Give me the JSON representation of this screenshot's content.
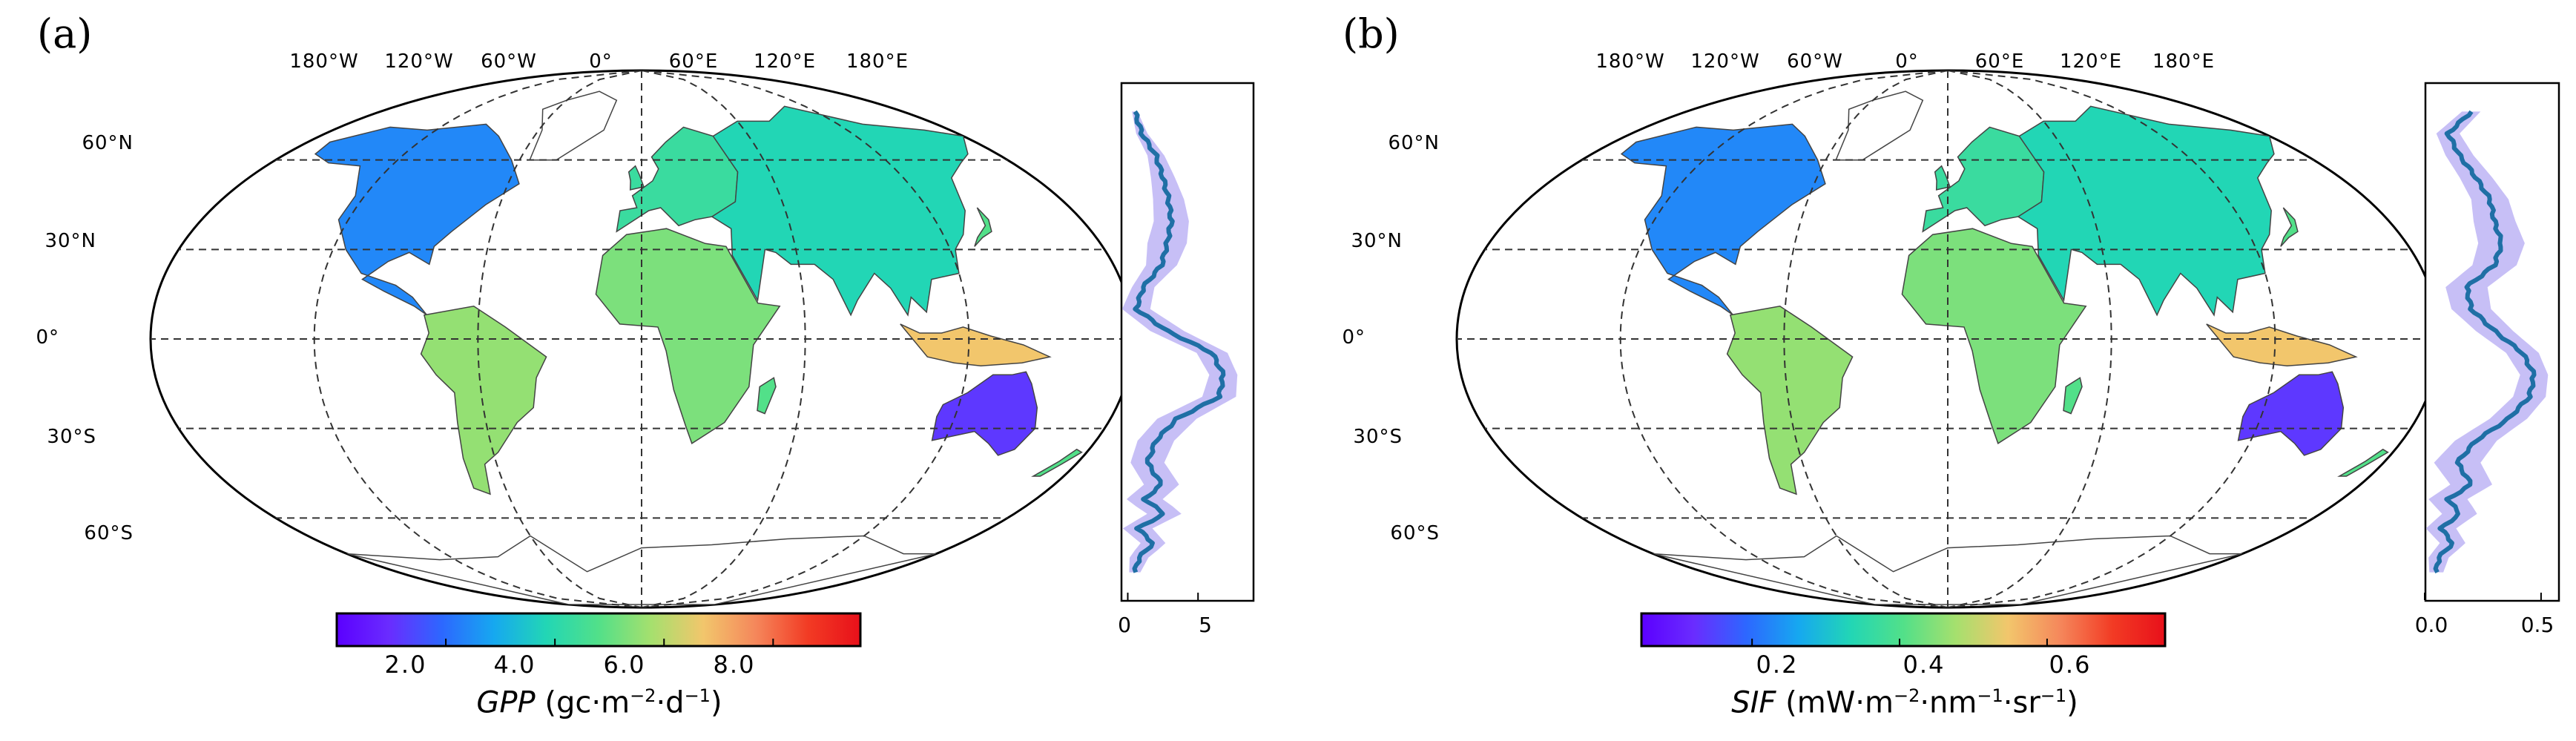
{
  "panels": [
    {
      "label": "(a)",
      "lon_labels": [
        "180°W",
        "120°W",
        "60°W",
        "0°",
        "60°E",
        "120°E",
        "180°E"
      ],
      "lat_labels": [
        "60°N",
        "30°N",
        "0°",
        "30°S",
        "60°S"
      ],
      "colorbar": {
        "ticks": [
          "2.0",
          "4.0",
          "6.0",
          "8.0"
        ],
        "tick_values": [
          2,
          4,
          6,
          8
        ],
        "range": [
          0,
          9.6
        ],
        "variable": "GPP",
        "units_pre": " (gc·m",
        "units_exp1": "−2",
        "units_mid": "·d",
        "units_exp2": "−1",
        "units_post": ")"
      },
      "profile": {
        "xticks": [
          "0",
          "5"
        ],
        "xtick_values": [
          0,
          5
        ],
        "xlim": [
          -0.5,
          9
        ],
        "mean_by_lat": [
          [
            72,
            0.5
          ],
          [
            66,
            1.0
          ],
          [
            60,
            2.0
          ],
          [
            54,
            2.5
          ],
          [
            48,
            2.9
          ],
          [
            42,
            3.1
          ],
          [
            36,
            2.8
          ],
          [
            30,
            2.4
          ],
          [
            24,
            1.1
          ],
          [
            18,
            0.6
          ],
          [
            12,
            2.8
          ],
          [
            6,
            6.0
          ],
          [
            0,
            6.8
          ],
          [
            -6,
            6.5
          ],
          [
            -12,
            3.5
          ],
          [
            -18,
            2.0
          ],
          [
            -24,
            1.4
          ],
          [
            -30,
            2.4
          ],
          [
            -34,
            1.2
          ],
          [
            -38,
            2.6
          ],
          [
            -42,
            0.7
          ],
          [
            -46,
            1.8
          ],
          [
            -50,
            0.8
          ],
          [
            -54,
            0.5
          ]
        ],
        "spread_by_lat": [
          [
            72,
            0.2
          ],
          [
            60,
            0.6
          ],
          [
            48,
            1.1
          ],
          [
            36,
            1.4
          ],
          [
            24,
            0.8
          ],
          [
            12,
            1.2
          ],
          [
            0,
            1.0
          ],
          [
            -12,
            1.4
          ],
          [
            -24,
            1.2
          ],
          [
            -36,
            1.3
          ],
          [
            -48,
            0.8
          ],
          [
            -54,
            0.4
          ]
        ]
      }
    },
    {
      "label": "(b)",
      "lon_labels": [
        "180°W",
        "120°W",
        "60°W",
        "0°",
        "60°E",
        "120°E",
        "180°E"
      ],
      "lat_labels": [
        "60°N",
        "30°N",
        "0°",
        "30°S",
        "60°S"
      ],
      "colorbar": {
        "ticks": [
          "0.2",
          "0.4",
          "0.6"
        ],
        "tick_values": [
          0.2,
          0.4,
          0.6
        ],
        "range": [
          0.05,
          0.76
        ],
        "variable": "SIF",
        "units_pre": " (mW·m",
        "units_exp1": "−2",
        "units_mid": "·nm",
        "units_exp2": "−1",
        "units_post": "·sr",
        "units_exp3": "−1",
        "units_post2": ")"
      },
      "profile": {
        "xticks": [
          "0.0",
          "0.5"
        ],
        "xtick_values": [
          0.0,
          0.5
        ],
        "xlim": [
          0,
          0.58
        ],
        "mean_by_lat": [
          [
            72,
            0.2
          ],
          [
            66,
            0.1
          ],
          [
            60,
            0.15
          ],
          [
            54,
            0.22
          ],
          [
            48,
            0.28
          ],
          [
            42,
            0.3
          ],
          [
            36,
            0.33
          ],
          [
            30,
            0.3
          ],
          [
            24,
            0.18
          ],
          [
            18,
            0.2
          ],
          [
            12,
            0.3
          ],
          [
            6,
            0.42
          ],
          [
            0,
            0.47
          ],
          [
            -6,
            0.45
          ],
          [
            -12,
            0.36
          ],
          [
            -18,
            0.22
          ],
          [
            -24,
            0.14
          ],
          [
            -30,
            0.2
          ],
          [
            -34,
            0.1
          ],
          [
            -38,
            0.15
          ],
          [
            -42,
            0.07
          ],
          [
            -46,
            0.12
          ],
          [
            -50,
            0.06
          ],
          [
            -54,
            0.05
          ]
        ],
        "spread_by_lat": [
          [
            72,
            0.04
          ],
          [
            60,
            0.06
          ],
          [
            48,
            0.08
          ],
          [
            36,
            0.1
          ],
          [
            24,
            0.09
          ],
          [
            12,
            0.08
          ],
          [
            0,
            0.06
          ],
          [
            -12,
            0.08
          ],
          [
            -24,
            0.1
          ],
          [
            -36,
            0.08
          ],
          [
            -48,
            0.05
          ],
          [
            -54,
            0.03
          ]
        ]
      }
    }
  ],
  "colors": {
    "profile_line": "#1f6fa5",
    "profile_band": "#b4a9f3",
    "grid": "#333333",
    "coast": "#444444",
    "colormap": [
      "#5b00ff",
      "#6a2cff",
      "#2d67ff",
      "#16a8f0",
      "#22d6b5",
      "#52e089",
      "#a5e06e",
      "#f2c66c",
      "#f5875b",
      "#f23b24",
      "#e8101a"
    ]
  }
}
